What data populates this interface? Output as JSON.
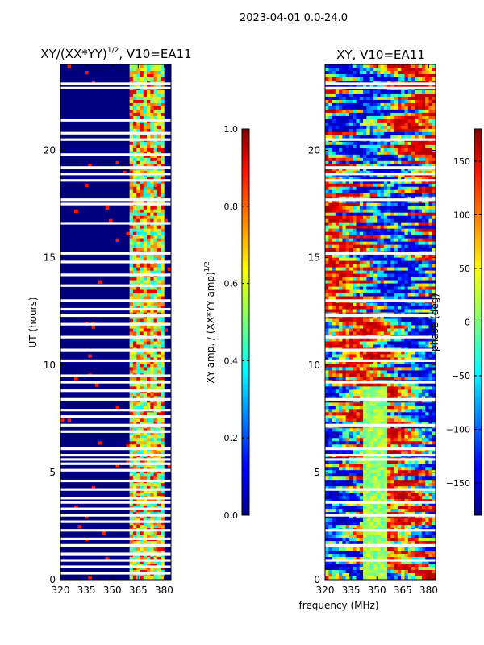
{
  "figure": {
    "suptitle": "2023-04-01 0.0-24.0",
    "xlabel": "frequency (MHz)"
  },
  "chart_data": [
    {
      "type": "heatmap",
      "title_main": "XY/(XX*YY)",
      "title_exp": "1/2",
      "title_tail": ", V10=EA11",
      "xlabel": "",
      "ylabel": "UT (hours)",
      "xlim": [
        320,
        384
      ],
      "ylim": [
        0,
        24
      ],
      "xticks": [
        320,
        335,
        350,
        365,
        380
      ],
      "yticks": [
        0,
        5,
        10,
        15,
        20
      ],
      "colorbar": {
        "label_main": "XY amp. / (XX*YY amp)",
        "label_exp": "1/2",
        "range": [
          0.0,
          1.0
        ],
        "ticks": [
          "0.0",
          "0.2",
          "0.4",
          "0.6",
          "0.8",
          "1.0"
        ],
        "colormap": "jet"
      },
      "bright_band_MHz": [
        361,
        380
      ],
      "flagged_hours": [
        23.1,
        22.9,
        21.4,
        20.8,
        20.5,
        19.8,
        19.2,
        18.9,
        18.6,
        17.7,
        17.5,
        16.6,
        15.2,
        14.8,
        14.2,
        13.7,
        13.0,
        12.6,
        12.3,
        11.9,
        11.3,
        10.7,
        10.2,
        9.5,
        9.2,
        8.8,
        8.4,
        7.9,
        7.6,
        7.2,
        6.9,
        6.1,
        5.8,
        5.6,
        5.4,
        5.1,
        4.6,
        4.2,
        3.8,
        3.6,
        3.3,
        3.0,
        2.7,
        2.3,
        1.9,
        1.6,
        1.2,
        0.9,
        0.6,
        0.3
      ]
    },
    {
      "type": "heatmap",
      "title": "XY, V10=EA11",
      "xlabel": "",
      "ylabel": "",
      "xlim": [
        320,
        384
      ],
      "ylim": [
        0,
        24
      ],
      "xticks": [
        320,
        335,
        350,
        365,
        380
      ],
      "yticks": [
        0,
        5,
        10,
        15,
        20
      ],
      "colorbar": {
        "label": "phase (deg)",
        "range": [
          -180,
          180
        ],
        "ticks": [
          "−150",
          "−100",
          "−50",
          "0",
          "50",
          "100",
          "150"
        ],
        "colormap": "jet"
      },
      "flagged_hours": [
        23.1,
        22.9,
        20.5,
        19.2,
        18.9,
        18.6,
        17.7,
        15.2,
        13.0,
        12.3,
        11.3,
        10.7,
        10.2,
        9.2,
        8.4,
        7.2,
        6.1,
        5.8,
        5.6,
        4.2,
        3.6,
        3.0,
        2.3,
        1.6,
        0.9
      ]
    }
  ]
}
